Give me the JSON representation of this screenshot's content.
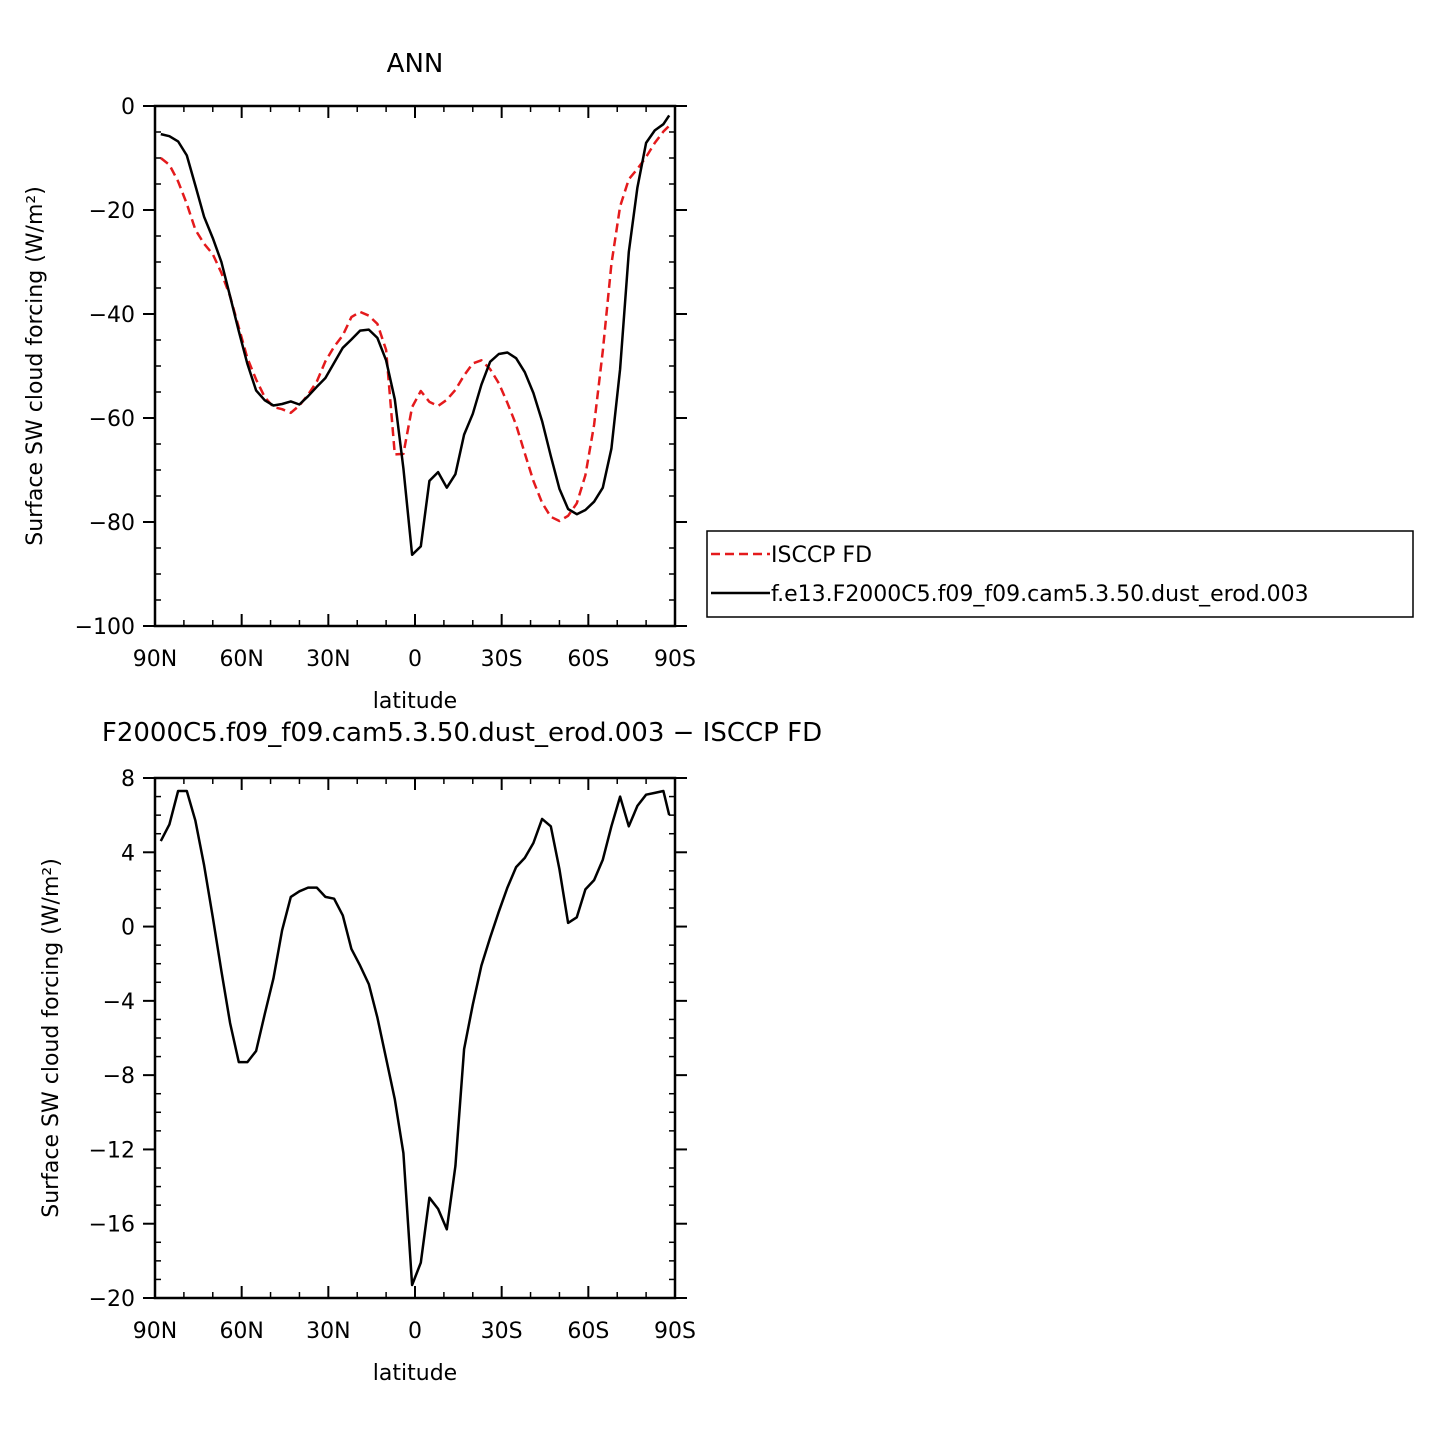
{
  "chart_data": [
    {
      "type": "line",
      "title": "ANN",
      "xlabel": "latitude",
      "ylabel": "Surface SW cloud forcing (W/m²)",
      "xlim": [
        90,
        -90
      ],
      "ylim": [
        -100,
        0
      ],
      "xticks": [
        90,
        60,
        30,
        0,
        -30,
        -60,
        -90
      ],
      "xtick_labels": [
        "90N",
        "60N",
        "30N",
        "0",
        "30S",
        "60S",
        "90S"
      ],
      "yticks": [
        0,
        -20,
        -40,
        -60,
        -80,
        -100
      ],
      "ytick_labels": [
        "0",
        "−20",
        "−40",
        "−60",
        "−80",
        "−100"
      ],
      "legend": "right",
      "series": [
        {
          "name": "ISCCP FD",
          "color": "#e41a1c",
          "dash": "dashed",
          "x": [
            88,
            85,
            82,
            79,
            76,
            73,
            70,
            67,
            64,
            61,
            58,
            55,
            52,
            49,
            46,
            43,
            40,
            37,
            34,
            31,
            28,
            25,
            22,
            19,
            16,
            13,
            10,
            7,
            4,
            1,
            -2,
            -5,
            -8,
            -11,
            -14,
            -17,
            -20,
            -23,
            -26,
            -29,
            -32,
            -35,
            -38,
            -41,
            -44,
            -47,
            -50,
            -53,
            -56,
            -59,
            -62,
            -65,
            -68,
            -71,
            -74,
            -77,
            -80,
            -83,
            -86,
            -88
          ],
          "y": [
            -10,
            -11.3,
            -14.5,
            -18.8,
            -23.8,
            -26.5,
            -28.5,
            -32.1,
            -36.6,
            -42.6,
            -48.5,
            -52.6,
            -56,
            -57.9,
            -58.3,
            -59,
            -57.6,
            -55.5,
            -53,
            -49.1,
            -46.3,
            -44.1,
            -40.6,
            -39.6,
            -40.3,
            -41.9,
            -46.9,
            -67,
            -66.9,
            -57.9,
            -54.8,
            -56.9,
            -57.7,
            -56.5,
            -54.6,
            -51.8,
            -49.5,
            -48.9,
            -50.6,
            -53.3,
            -57.1,
            -61.3,
            -66.8,
            -72.1,
            -76.3,
            -79,
            -79.8,
            -78.8,
            -76.4,
            -71,
            -61.3,
            -47.1,
            -30.4,
            -19.3,
            -14.1,
            -12.1,
            -9.8,
            -7.1,
            -4.9,
            -3.8
          ]
        },
        {
          "name": "f.e13.F2000C5.f09_f09.cam5.3.50.dust_erod.003",
          "color": "#000000",
          "dash": "solid",
          "x": [
            88,
            85,
            82,
            79,
            76,
            73,
            70,
            67,
            64,
            61,
            58,
            55,
            52,
            49,
            46,
            43,
            40,
            37,
            34,
            31,
            28,
            25,
            22,
            19,
            16,
            13,
            10,
            7,
            4,
            1,
            -2,
            -5,
            -8,
            -11,
            -14,
            -17,
            -20,
            -23,
            -26,
            -29,
            -32,
            -35,
            -38,
            -41,
            -44,
            -47,
            -50,
            -53,
            -56,
            -59,
            -62,
            -65,
            -68,
            -71,
            -74,
            -77,
            -80,
            -83,
            -86,
            -88
          ],
          "y": [
            -5.4,
            -5.8,
            -6.8,
            -9.5,
            -15.3,
            -21.3,
            -25.4,
            -30,
            -36.6,
            -43.3,
            -49.6,
            -54.7,
            -56.6,
            -57.6,
            -57.3,
            -56.8,
            -57.4,
            -55.8,
            -54,
            -52.3,
            -49.4,
            -46.5,
            -44.9,
            -43.2,
            -43,
            -44.6,
            -48.9,
            -56.4,
            -69.7,
            -86.3,
            -84.7,
            -72.1,
            -70.4,
            -73.4,
            -70.8,
            -63.2,
            -59.2,
            -53.6,
            -49.2,
            -47.7,
            -47.4,
            -48.5,
            -51.2,
            -55.2,
            -60.6,
            -67.3,
            -73.6,
            -77.5,
            -78.5,
            -77.7,
            -76.1,
            -73.4,
            -65.9,
            -50.6,
            -28.1,
            -15.7,
            -7.1,
            -4.7,
            -3.5,
            -1.8
          ]
        }
      ]
    },
    {
      "type": "line",
      "title": "F2000C5.f09_f09.cam5.3.50.dust_erod.003 − ISCCP FD",
      "xlabel": "latitude",
      "ylabel": "Surface SW cloud forcing (W/m²)",
      "xlim": [
        90,
        -90
      ],
      "ylim": [
        -20,
        8
      ],
      "xticks": [
        90,
        60,
        30,
        0,
        -30,
        -60,
        -90
      ],
      "xtick_labels": [
        "90N",
        "60N",
        "30N",
        "0",
        "30S",
        "60S",
        "90S"
      ],
      "yticks": [
        8,
        4,
        0,
        -4,
        -8,
        -12,
        -16,
        -20
      ],
      "ytick_labels": [
        "8",
        "4",
        "0",
        "−4",
        "−8",
        "−12",
        "−16",
        "−20"
      ],
      "series": [
        {
          "color": "#000000",
          "dash": "solid",
          "x": [
            88,
            85,
            82,
            79,
            76,
            73,
            70,
            67,
            64,
            61,
            58,
            55,
            52,
            49,
            46,
            43,
            40,
            37,
            34,
            31,
            28,
            25,
            22,
            19,
            16,
            13,
            10,
            7,
            4,
            1,
            -2,
            -5,
            -8,
            -11,
            -14,
            -17,
            -20,
            -23,
            -26,
            -29,
            -32,
            -35,
            -38,
            -41,
            -44,
            -47,
            -50,
            -53,
            -56,
            -59,
            -62,
            -65,
            -68,
            -71,
            -74,
            -77,
            -80,
            -83,
            -86,
            -88
          ],
          "y": [
            4.6,
            5.5,
            7.3,
            7.3,
            5.7,
            3.3,
            0.5,
            -2.4,
            -5.2,
            -7.3,
            -7.3,
            -6.7,
            -4.7,
            -2.8,
            -0.2,
            1.6,
            1.9,
            2.1,
            2.1,
            1.6,
            1.5,
            0.6,
            -1.2,
            -2.1,
            -3.1,
            -4.9,
            -7.1,
            -9.3,
            -12.2,
            -19.3,
            -18.1,
            -14.6,
            -15.2,
            -16.3,
            -12.9,
            -6.6,
            -4.2,
            -2.1,
            -0.6,
            0.8,
            2.1,
            3.2,
            3.7,
            4.5,
            5.8,
            5.4,
            3.1,
            0.2,
            0.5,
            2.0,
            2.5,
            3.6,
            5.4,
            7.0,
            5.4,
            6.5,
            7.1,
            7.2,
            7.3,
            6.0
          ]
        }
      ]
    }
  ]
}
